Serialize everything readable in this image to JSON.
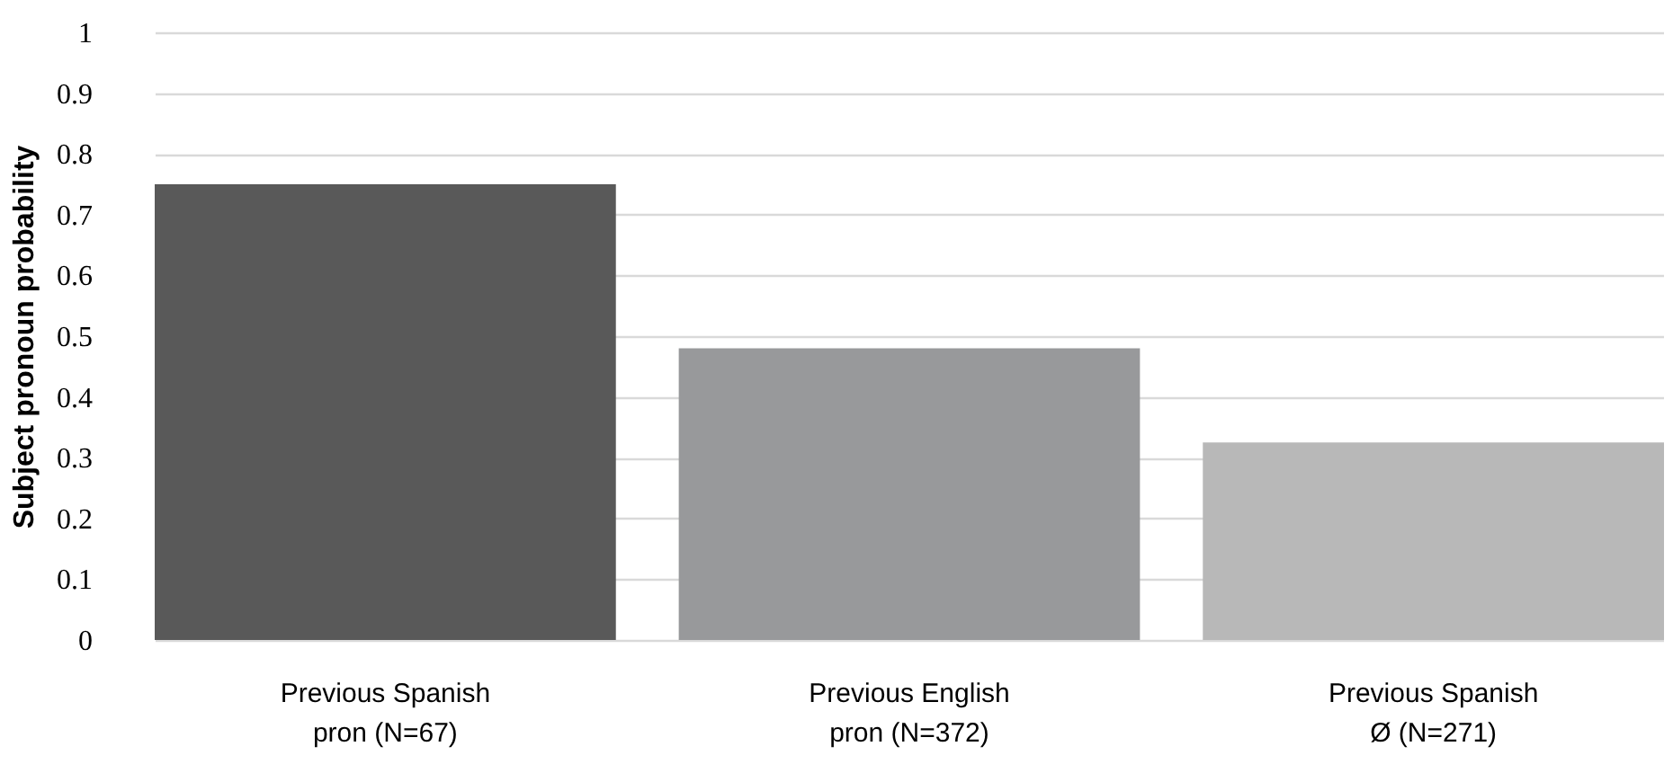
{
  "chart_data": {
    "type": "bar",
    "ylabel": "Subject pronoun probability",
    "categories": [
      "Previous Spanish pron (N=67)",
      "Previous English pron (N=372)",
      "Previous Spanish Ø (N=271)"
    ],
    "values": [
      0.75,
      0.48,
      0.325
    ],
    "colors": [
      "#595959",
      "#98999b",
      "#b8b8b8"
    ],
    "ylim": [
      0,
      1
    ],
    "yticks": [
      0,
      0.1,
      0.2,
      0.3,
      0.4,
      0.5,
      0.6,
      0.7,
      0.8,
      0.9,
      1
    ],
    "grid": "y"
  }
}
